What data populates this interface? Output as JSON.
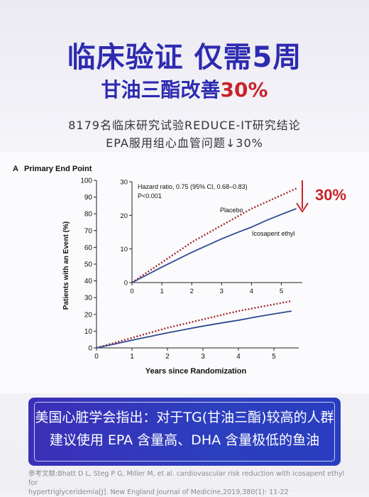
{
  "header": {
    "title": "临床验证 仅需5周",
    "subtitle_prefix": "甘油三酯改善",
    "subtitle_highlight": "30%",
    "info_line1": "8179名临床研究试验REDUCE-IT研究结论",
    "info_line2": "EPA服用组心血管问题↓30%"
  },
  "callout": {
    "line1": "美国心脏学会指出：对于TG(甘油三酯)较高的人群",
    "line2": "建议使用 EPA 含量高、DHA 含量极低的鱼油"
  },
  "reference": {
    "line1": "参考文献:Bhatt D L, Steg P G, Miller M, et al. cardiovascular risk reduction with icosapent ethyl for",
    "line2": "hypertriglyceridemia[J]. New England journal of Medicine,2019,380(1): 11-22"
  },
  "colors": {
    "title_blue": "#2d2bb0",
    "highlight_red": "#c8232c",
    "placebo": "#a0262a",
    "icosapent": "#2f4a92"
  },
  "chart_data": [
    {
      "type": "line",
      "panel_label": "A",
      "title": "Primary End Point",
      "xlabel": "Years since Randomization",
      "ylabel": "Patients with an Event (%)",
      "xlim": [
        0,
        5.7
      ],
      "ylim": [
        0,
        100
      ],
      "xticks": [
        "0",
        "1",
        "2",
        "3",
        "4",
        "5"
      ],
      "yticks": [
        "0",
        "10",
        "20",
        "30",
        "40",
        "50",
        "60",
        "70",
        "80",
        "90",
        "100"
      ],
      "series": [
        {
          "name": "Placebo",
          "style": "dotted",
          "x": [
            0,
            0.5,
            1,
            1.5,
            2,
            2.5,
            3,
            3.5,
            4,
            4.5,
            5,
            5.5
          ],
          "y": [
            0,
            3,
            6,
            9,
            12,
            14.5,
            17,
            19.5,
            22,
            24,
            26,
            28
          ]
        },
        {
          "name": "Icosapent ethyl",
          "style": "solid",
          "x": [
            0,
            0.5,
            1,
            1.5,
            2,
            2.5,
            3,
            3.5,
            4,
            4.5,
            5,
            5.5
          ],
          "y": [
            0,
            2.3,
            4.6,
            6.8,
            9,
            11,
            13,
            14.8,
            16.5,
            18.5,
            20.3,
            22
          ]
        }
      ]
    },
    {
      "type": "line",
      "title": "inset",
      "annotation": "Hazard ratio, 0.75 (95% CI, 0.68–0.83)",
      "annotation2": "P<0.001",
      "callout_value": "30%",
      "xlim": [
        0,
        5.7
      ],
      "ylim": [
        0,
        30
      ],
      "xticks": [
        "0",
        "1",
        "2",
        "3",
        "4",
        "5"
      ],
      "yticks": [
        "0",
        "10",
        "20",
        "30"
      ],
      "series": [
        {
          "name": "Placebo",
          "style": "dotted",
          "x": [
            0,
            0.5,
            1,
            1.5,
            2,
            2.5,
            3,
            3.5,
            4,
            4.5,
            5,
            5.5
          ],
          "y": [
            0,
            3,
            6,
            9,
            12,
            14.5,
            17,
            19.5,
            22,
            24,
            26,
            28
          ]
        },
        {
          "name": "Icosapent ethyl",
          "style": "solid",
          "x": [
            0,
            0.5,
            1,
            1.5,
            2,
            2.5,
            3,
            3.5,
            4,
            4.5,
            5,
            5.5
          ],
          "y": [
            0,
            2.3,
            4.6,
            6.8,
            9,
            11,
            13,
            14.8,
            16.5,
            18.5,
            20.3,
            22
          ]
        }
      ]
    }
  ]
}
